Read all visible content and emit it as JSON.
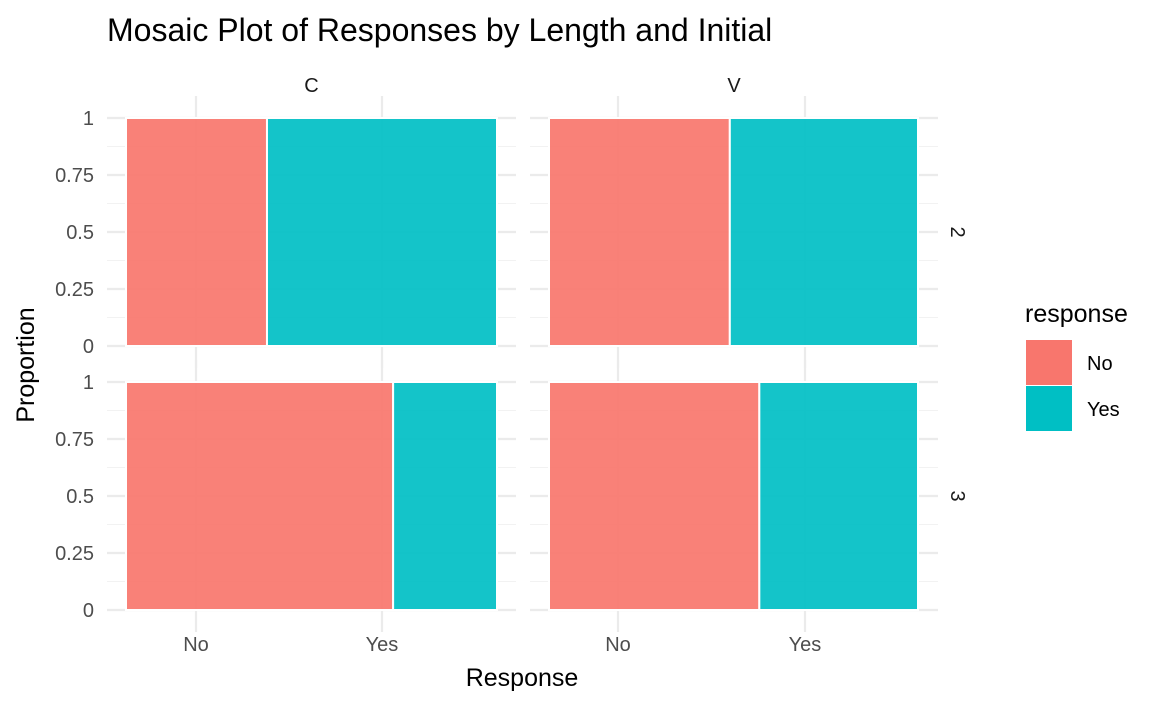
{
  "chart_data": {
    "type": "bar",
    "subtype": "mosaic",
    "title": "Mosaic Plot of Responses by Length and Initial",
    "xlabel": "Response",
    "ylabel": "Proportion",
    "x_categories": [
      "No",
      "Yes"
    ],
    "y_ticks": [
      0,
      0.25,
      0.5,
      0.75,
      1
    ],
    "y_tick_labels": [
      "0",
      "0.25",
      "0.5",
      "0.75",
      "1"
    ],
    "ylim": [
      0,
      1
    ],
    "facet_columns": [
      "C",
      "V"
    ],
    "facet_rows": [
      "2",
      "3"
    ],
    "legend": {
      "title": "response",
      "position": "right",
      "entries": [
        {
          "label": "No",
          "color": "#F8766D"
        },
        {
          "label": "Yes",
          "color": "#00BFC4"
        }
      ]
    },
    "panels": [
      {
        "column": "C",
        "row": "2",
        "no_share": 0.38,
        "yes_share": 0.62
      },
      {
        "column": "V",
        "row": "2",
        "no_share": 0.49,
        "yes_share": 0.51
      },
      {
        "column": "C",
        "row": "3",
        "no_share": 0.72,
        "yes_share": 0.28
      },
      {
        "column": "V",
        "row": "3",
        "no_share": 0.57,
        "yes_share": 0.43
      }
    ],
    "grid": true
  }
}
